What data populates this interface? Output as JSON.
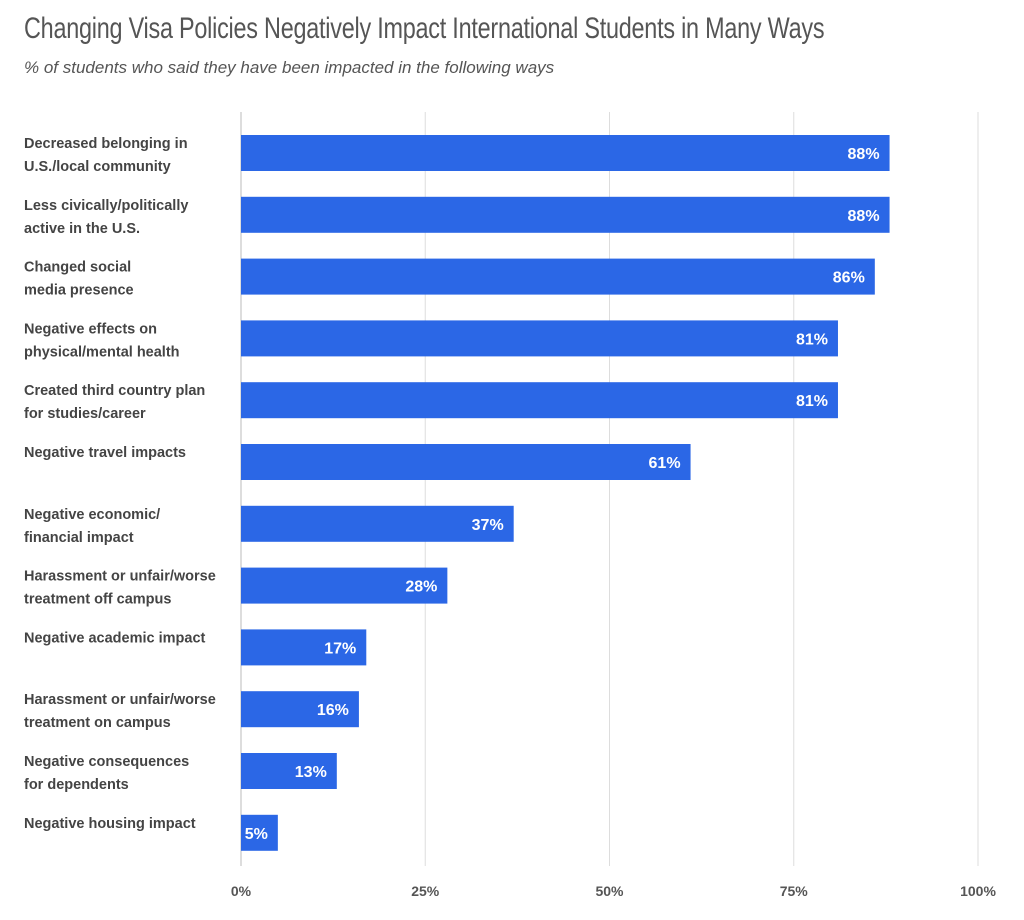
{
  "chart_data": {
    "type": "bar",
    "orientation": "horizontal",
    "title": "Changing Visa Policies Negatively Impact International Students in Many Ways",
    "subtitle": "% of students who said they have been impacted in the following ways",
    "xlabel": "",
    "ylabel": "",
    "xlim": [
      0,
      100
    ],
    "grid": true,
    "bar_color": "#2B67E6",
    "categories": [
      [
        "Decreased belonging in",
        "U.S./local community"
      ],
      [
        "Less civically/politically",
        "active in the U.S."
      ],
      [
        "Changed social",
        "media presence"
      ],
      [
        "Negative effects on",
        "physical/mental health"
      ],
      [
        "Created third country plan",
        "for studies/career"
      ],
      [
        "Negative travel impacts"
      ],
      [
        "Negative economic/",
        "financial impact"
      ],
      [
        "Harassment or unfair/worse",
        "treatment off campus"
      ],
      [
        "Negative academic impact"
      ],
      [
        "Harassment or unfair/worse",
        "treatment on campus"
      ],
      [
        "Negative consequences",
        "for dependents"
      ],
      [
        "Negative housing impact"
      ]
    ],
    "values": [
      88,
      88,
      86,
      81,
      81,
      61,
      37,
      28,
      17,
      16,
      13,
      5
    ],
    "value_labels": [
      "88%",
      "88%",
      "86%",
      "81%",
      "81%",
      "61%",
      "37%",
      "28%",
      "17%",
      "16%",
      "13%",
      "5%"
    ],
    "ticks": [
      0,
      25,
      50,
      75,
      100
    ],
    "tick_labels": [
      "0%",
      "25%",
      "50%",
      "75%",
      "100%"
    ]
  }
}
